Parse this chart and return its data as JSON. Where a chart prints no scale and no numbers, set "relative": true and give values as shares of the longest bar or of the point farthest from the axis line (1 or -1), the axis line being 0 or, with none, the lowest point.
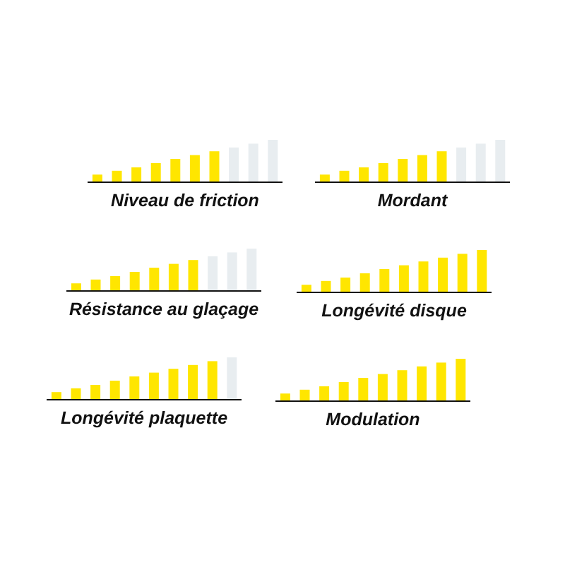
{
  "chart_data": [
    {
      "type": "bar",
      "relative": true,
      "xlabel": "Niveau de friction",
      "categories": [
        null,
        null,
        null,
        null,
        null,
        null,
        null,
        null,
        null,
        null
      ],
      "values": [
        0.18,
        0.27,
        0.35,
        0.45,
        0.55,
        0.64,
        0.73,
        0.82,
        0.91,
        1
      ],
      "colors": [
        "#ffe600",
        "#ffe600",
        "#ffe600",
        "#ffe600",
        "#ffe600",
        "#ffe600",
        "#ffe600",
        "#e8edf0",
        "#e8edf0",
        "#e8edf0"
      ]
    },
    {
      "type": "bar",
      "relative": true,
      "xlabel": "Mordant",
      "categories": [
        null,
        null,
        null,
        null,
        null,
        null,
        null,
        null,
        null,
        null
      ],
      "values": [
        0.18,
        0.27,
        0.35,
        0.45,
        0.55,
        0.64,
        0.73,
        0.82,
        0.91,
        1
      ],
      "colors": [
        "#ffe600",
        "#ffe600",
        "#ffe600",
        "#ffe600",
        "#ffe600",
        "#ffe600",
        "#ffe600",
        "#e8edf0",
        "#e8edf0",
        "#e8edf0"
      ]
    },
    {
      "type": "bar",
      "relative": true,
      "xlabel": "Résistance au glaçage",
      "categories": [
        null,
        null,
        null,
        null,
        null,
        null,
        null,
        null,
        null,
        null
      ],
      "values": [
        0.18,
        0.27,
        0.35,
        0.45,
        0.55,
        0.64,
        0.73,
        0.82,
        0.91,
        1
      ],
      "colors": [
        "#ffe600",
        "#ffe600",
        "#ffe600",
        "#ffe600",
        "#ffe600",
        "#ffe600",
        "#ffe600",
        "#e8edf0",
        "#e8edf0",
        "#e8edf0"
      ]
    },
    {
      "type": "bar",
      "relative": true,
      "xlabel": "Longévité disque",
      "categories": [
        null,
        null,
        null,
        null,
        null,
        null,
        null,
        null,
        null,
        null
      ],
      "values": [
        0.18,
        0.27,
        0.35,
        0.45,
        0.55,
        0.64,
        0.73,
        0.82,
        0.91,
        1
      ],
      "colors": [
        "#ffe600",
        "#ffe600",
        "#ffe600",
        "#ffe600",
        "#ffe600",
        "#ffe600",
        "#ffe600",
        "#ffe600",
        "#ffe600",
        "#ffe600"
      ]
    },
    {
      "type": "bar",
      "relative": true,
      "xlabel": "Longévité plaquette",
      "categories": [
        null,
        null,
        null,
        null,
        null,
        null,
        null,
        null,
        null,
        null
      ],
      "values": [
        0.18,
        0.27,
        0.35,
        0.45,
        0.55,
        0.64,
        0.73,
        0.82,
        0.91,
        1
      ],
      "colors": [
        "#ffe600",
        "#ffe600",
        "#ffe600",
        "#ffe600",
        "#ffe600",
        "#ffe600",
        "#ffe600",
        "#ffe600",
        "#ffe600",
        "#e8edf0"
      ]
    },
    {
      "type": "bar",
      "relative": true,
      "xlabel": "Modulation",
      "categories": [
        null,
        null,
        null,
        null,
        null,
        null,
        null,
        null,
        null,
        null
      ],
      "values": [
        0.18,
        0.27,
        0.35,
        0.45,
        0.55,
        0.64,
        0.73,
        0.82,
        0.91,
        1
      ],
      "colors": [
        "#ffe600",
        "#ffe600",
        "#ffe600",
        "#ffe600",
        "#ffe600",
        "#ffe600",
        "#ffe600",
        "#ffe600",
        "#ffe600",
        "#ffe600"
      ]
    }
  ]
}
